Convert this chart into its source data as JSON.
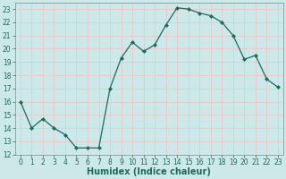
{
  "x": [
    0,
    1,
    2,
    3,
    4,
    5,
    6,
    7,
    8,
    9,
    10,
    11,
    12,
    13,
    14,
    15,
    16,
    17,
    18,
    19,
    20,
    21,
    22,
    23
  ],
  "y": [
    16,
    14,
    14.7,
    14,
    13.5,
    12.5,
    12.5,
    12.5,
    17,
    19.3,
    20.5,
    19.8,
    20.3,
    21.8,
    23.1,
    23.0,
    22.7,
    22.5,
    22.0,
    21.0,
    19.2,
    19.5,
    17.7,
    17.1
  ],
  "line_color": "#1a6b5f",
  "marker": "D",
  "marker_size": 2.0,
  "xlabel": "Humidex (Indice chaleur)",
  "ylim": [
    12,
    23.5
  ],
  "xlim": [
    -0.5,
    23.5
  ],
  "yticks": [
    12,
    13,
    14,
    15,
    16,
    17,
    18,
    19,
    20,
    21,
    22,
    23
  ],
  "xticks": [
    0,
    1,
    2,
    3,
    4,
    5,
    6,
    7,
    8,
    9,
    10,
    11,
    12,
    13,
    14,
    15,
    16,
    17,
    18,
    19,
    20,
    21,
    22,
    23
  ],
  "background_color": "#cce8e8",
  "grid_color": "#e8c8c8",
  "xlabel_fontsize": 7,
  "tick_fontsize": 5.5,
  "linewidth": 0.9
}
